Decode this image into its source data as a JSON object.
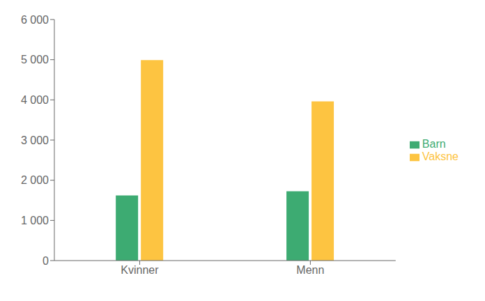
{
  "chart_data": {
    "type": "bar",
    "categories": [
      "Kvinner",
      "Menn"
    ],
    "series": [
      {
        "name": "Barn",
        "color": "#3dab72",
        "values": [
          1623,
          1724
        ]
      },
      {
        "name": "Vaksne",
        "color": "#fdc441",
        "values": [
          4988,
          3964
        ]
      }
    ],
    "ylim": [
      0,
      6000
    ],
    "yticks": [
      0,
      {
        "value": 1000,
        "label": "1 000"
      },
      {
        "value": 2000,
        "label": "2 000"
      },
      {
        "value": 3000,
        "label": "3 000"
      },
      {
        "value": 4000,
        "label": "4 000"
      },
      {
        "value": 5000,
        "label": "5 000"
      },
      {
        "value": 6000,
        "label": "6 000"
      }
    ],
    "grid": false,
    "legend": "right"
  }
}
